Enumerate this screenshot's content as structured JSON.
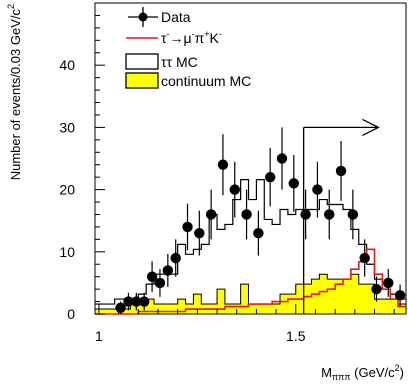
{
  "chart_data": {
    "type": "histogram",
    "title": "",
    "xlabel": {
      "main": "M",
      "sub": "πππ",
      "unit_pre": " (GeV/c",
      "unit_sup": "2",
      "unit_post": ")"
    },
    "ylabel": {
      "main": "Number of events/0.03 GeV/c",
      "sup": "2"
    },
    "xlim": [
      0.99,
      1.78
    ],
    "ylim": [
      0,
      50
    ],
    "x_ticks": [
      1,
      1.5
    ],
    "x_tick_labels": [
      "1",
      "1.5"
    ],
    "y_ticks": [
      0,
      10,
      20,
      30,
      40
    ],
    "y_tick_labels": [
      "0",
      "10",
      "20",
      "30",
      "40"
    ],
    "grid": false,
    "legend": {
      "position": "top-left",
      "entries": [
        {
          "label": "Data",
          "kind": "marker"
        },
        {
          "label_parts": [
            {
              "t": "τ",
              "s": "base"
            },
            {
              "t": "-",
              "s": "sup"
            },
            {
              "t": "→μ",
              "s": "base"
            },
            {
              "t": "-",
              "s": "sup"
            },
            {
              "t": "π",
              "s": "base"
            },
            {
              "t": "+",
              "s": "sup"
            },
            {
              "t": "K",
              "s": "base"
            },
            {
              "t": "-",
              "s": "sup"
            }
          ],
          "kind": "line",
          "color": "#e01a1a"
        },
        {
          "label": "ττ MC",
          "kind": "box"
        },
        {
          "label": "continuum MC",
          "kind": "filled",
          "color": "#ffff00"
        }
      ]
    },
    "cut": {
      "x": 1.52,
      "y_top": 30,
      "arrow_to_x": 1.71
    },
    "series": [
      {
        "name": "continuum MC",
        "kind": "filled_histogram",
        "color": "#ffff00",
        "edges": [
          0.99,
          1.0,
          1.02,
          1.04,
          1.06,
          1.08,
          1.1,
          1.12,
          1.14,
          1.16,
          1.18,
          1.2,
          1.22,
          1.24,
          1.26,
          1.28,
          1.3,
          1.32,
          1.34,
          1.36,
          1.38,
          1.4,
          1.42,
          1.44,
          1.46,
          1.48,
          1.5,
          1.52,
          1.54,
          1.56,
          1.58,
          1.6,
          1.62,
          1.64,
          1.66,
          1.68,
          1.7,
          1.72,
          1.74,
          1.76,
          1.78
        ],
        "values": [
          0.8,
          0.8,
          0.8,
          0.8,
          0.8,
          1.6,
          1.6,
          2.4,
          1.6,
          1.6,
          1.6,
          2.4,
          1.6,
          3.2,
          1.6,
          1.6,
          4.0,
          1.6,
          1.6,
          4.8,
          1.6,
          1.6,
          1.6,
          1.6,
          3.2,
          3.2,
          4.8,
          4.8,
          5.6,
          6.4,
          5.6,
          5.6,
          5.6,
          6.4,
          4.8,
          4.8,
          2.4,
          2.4,
          2.4,
          1.6
        ]
      },
      {
        "name": "ττ MC",
        "kind": "step_histogram",
        "color": "#000000",
        "edges": [
          0.99,
          1.0,
          1.02,
          1.04,
          1.06,
          1.08,
          1.1,
          1.12,
          1.14,
          1.16,
          1.18,
          1.2,
          1.22,
          1.24,
          1.26,
          1.28,
          1.3,
          1.32,
          1.34,
          1.36,
          1.38,
          1.4,
          1.42,
          1.44,
          1.46,
          1.48,
          1.5,
          1.52,
          1.54,
          1.56,
          1.58,
          1.6,
          1.62,
          1.64,
          1.66,
          1.68,
          1.7,
          1.72,
          1.74,
          1.76,
          1.78
        ],
        "values": [
          1.6,
          1.6,
          1.6,
          2.4,
          2.4,
          2.4,
          3.2,
          4.8,
          6.4,
          6.4,
          6.4,
          11.2,
          9.6,
          10.4,
          11.2,
          16.0,
          13.6,
          14.4,
          18.4,
          21.6,
          18.4,
          21.6,
          15.2,
          14.4,
          16.8,
          16.0,
          16.8,
          16.8,
          16.8,
          18.4,
          17.6,
          17.6,
          16.8,
          13.6,
          11.2,
          8.0,
          5.6,
          4.0,
          3.2,
          2.4
        ]
      },
      {
        "name": "τ→μπK",
        "kind": "step_line",
        "color": "#e01a1a",
        "edges": [
          0.99,
          1.0,
          1.02,
          1.04,
          1.06,
          1.08,
          1.1,
          1.12,
          1.14,
          1.16,
          1.18,
          1.2,
          1.22,
          1.24,
          1.26,
          1.28,
          1.3,
          1.32,
          1.34,
          1.36,
          1.38,
          1.4,
          1.42,
          1.44,
          1.46,
          1.48,
          1.5,
          1.52,
          1.54,
          1.56,
          1.58,
          1.6,
          1.62,
          1.64,
          1.66,
          1.68,
          1.7,
          1.72,
          1.74,
          1.76,
          1.78
        ],
        "values": [
          0.0,
          0.0,
          0.0,
          0.0,
          0.0,
          0.0,
          0.4,
          0.4,
          0.4,
          0.4,
          0.4,
          0.4,
          0.8,
          0.8,
          0.8,
          0.8,
          0.8,
          1.2,
          1.2,
          1.2,
          1.6,
          1.6,
          1.6,
          2.0,
          2.0,
          2.4,
          2.4,
          2.8,
          3.2,
          3.6,
          4.0,
          4.8,
          5.6,
          7.2,
          8.4,
          10.4,
          6.4,
          4.0,
          2.4,
          1.2
        ]
      },
      {
        "name": "Data",
        "kind": "points_with_errors",
        "color": "#000000",
        "points": [
          {
            "x": 1.055,
            "y": 1
          },
          {
            "x": 1.075,
            "y": 2
          },
          {
            "x": 1.095,
            "y": 2
          },
          {
            "x": 1.115,
            "y": 2
          },
          {
            "x": 1.135,
            "y": 6
          },
          {
            "x": 1.155,
            "y": 5
          },
          {
            "x": 1.175,
            "y": 7
          },
          {
            "x": 1.195,
            "y": 9
          },
          {
            "x": 1.225,
            "y": 14
          },
          {
            "x": 1.255,
            "y": 13
          },
          {
            "x": 1.285,
            "y": 16
          },
          {
            "x": 1.315,
            "y": 24
          },
          {
            "x": 1.345,
            "y": 20
          },
          {
            "x": 1.375,
            "y": 16
          },
          {
            "x": 1.405,
            "y": 13
          },
          {
            "x": 1.435,
            "y": 22
          },
          {
            "x": 1.465,
            "y": 25
          },
          {
            "x": 1.495,
            "y": 21
          },
          {
            "x": 1.525,
            "y": 16
          },
          {
            "x": 1.555,
            "y": 20
          },
          {
            "x": 1.585,
            "y": 16
          },
          {
            "x": 1.615,
            "y": 23
          },
          {
            "x": 1.645,
            "y": 16
          },
          {
            "x": 1.675,
            "y": 9
          },
          {
            "x": 1.705,
            "y": 4
          },
          {
            "x": 1.735,
            "y": 5
          },
          {
            "x": 1.765,
            "y": 3
          }
        ]
      }
    ]
  }
}
